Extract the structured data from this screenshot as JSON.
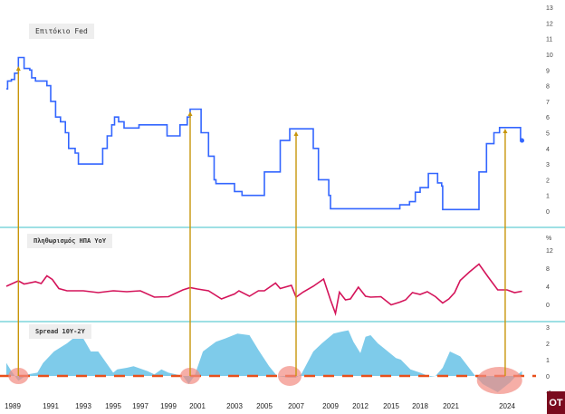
{
  "chart_data": [
    {
      "type": "line",
      "title": "Επιτόκιο Fed",
      "yticks": [
        0,
        1,
        2,
        3,
        4,
        5,
        6,
        7,
        8,
        9,
        10,
        11,
        12,
        13
      ],
      "ylim": [
        0,
        13
      ],
      "color": "#3366ff",
      "x": [
        1988.5,
        1988.6,
        1988.9,
        1989.1,
        1989.3,
        1989.5,
        1989.6,
        1989.9,
        1990.0,
        1990.2,
        1990.8,
        1991.0,
        1991.3,
        1991.6,
        1991.9,
        1992.1,
        1992.5,
        1992.7,
        1994.0,
        1994.3,
        1994.6,
        1994.9,
        1995.1,
        1995.4,
        1995.8,
        1996.9,
        1998.6,
        1998.9,
        1999.4,
        1999.8,
        2000.3,
        2000.5,
        2000.9,
        2001.2,
        2001.6,
        2001.9,
        2002.0,
        2002.9,
        2003.0,
        2003.5,
        2004.4,
        2005.0,
        2006.0,
        2006.6,
        2007.6,
        2008.0,
        2008.3,
        2008.9,
        2009.0,
        2015.9,
        2016.9,
        2017.5,
        2018.0,
        2018.8,
        2019.3,
        2019.7,
        2020.1,
        2020.2,
        2022.2,
        2022.5,
        2022.9,
        2023.3,
        2023.6,
        2024.6,
        2024.9,
        2025.0
      ],
      "y": [
        7.8,
        8.3,
        8.4,
        8.8,
        9.8,
        9.8,
        9.1,
        9.0,
        8.5,
        8.3,
        8.0,
        7.0,
        6.0,
        5.7,
        5.0,
        4.0,
        3.7,
        3.0,
        3.0,
        4.0,
        4.8,
        5.5,
        6.0,
        5.7,
        5.3,
        5.5,
        5.5,
        4.8,
        4.8,
        5.5,
        6.0,
        6.5,
        6.5,
        5.0,
        3.5,
        2.0,
        1.75,
        1.75,
        1.25,
        1.0,
        1.0,
        2.5,
        4.5,
        5.25,
        5.25,
        4.0,
        2.0,
        1.0,
        0.15,
        0.4,
        0.6,
        1.2,
        1.5,
        2.4,
        2.4,
        1.8,
        1.6,
        0.1,
        0.1,
        2.5,
        4.3,
        5.0,
        5.33,
        5.33,
        4.6,
        4.5
      ]
    },
    {
      "type": "line",
      "title": "Πληθωρισμός ΗΠΑ YoY",
      "unit": "%",
      "yticks": [
        0,
        4,
        8,
        12
      ],
      "color": "#d4145a",
      "x": [
        1988.5,
        1989.3,
        1989.6,
        1990.2,
        1990.5,
        1990.8,
        1991.1,
        1991.5,
        1992,
        1993,
        1994,
        1995,
        1996,
        1997,
        1998,
        1999,
        2000,
        2000.5,
        2001,
        2001.6,
        2002.3,
        2003,
        2003.3,
        2004,
        2004.6,
        2005,
        2005.7,
        2006,
        2006.7,
        2007,
        2007.4,
        2008,
        2008.6,
        2009.0,
        2009.5,
        2009.9,
        2010.5,
        2011.0,
        2011.8,
        2012.5,
        2013,
        2014,
        2015,
        2015.9,
        2016.5,
        2017.2,
        2018,
        2018.7,
        2019.5,
        2020.2,
        2020.8,
        2021.2,
        2021.5,
        2022.0,
        2022.5,
        2023,
        2023.5,
        2024,
        2024.5,
        2025.0
      ],
      "y": [
        4.0,
        5.2,
        4.5,
        5.0,
        4.6,
        6.3,
        5.5,
        3.5,
        3.0,
        3.0,
        2.6,
        3.0,
        2.8,
        3.0,
        1.6,
        1.7,
        3.2,
        3.7,
        3.4,
        3.0,
        1.2,
        2.3,
        3.0,
        1.8,
        3.0,
        3.0,
        4.7,
        3.5,
        4.2,
        1.6,
        2.7,
        4.0,
        5.6,
        1.0,
        -2.0,
        2.7,
        1.0,
        1.2,
        3.8,
        1.8,
        1.6,
        1.7,
        -0.1,
        0.5,
        1.0,
        2.6,
        2.2,
        2.8,
        1.7,
        0.3,
        1.2,
        2.6,
        5.3,
        7.2,
        8.9,
        6.0,
        3.2,
        3.2,
        2.6,
        2.9
      ]
    },
    {
      "type": "area",
      "title": "Spread 10Y-2Y",
      "yticks": [
        -1,
        0,
        1,
        2,
        3
      ],
      "color": "#7ecbea",
      "zero_line_color": "#e8501c",
      "x": [
        1988.5,
        1988.9,
        1989.3,
        1989.8,
        1990.3,
        1990.6,
        1991.2,
        1992,
        1992.5,
        1993,
        1993.5,
        1994,
        1995,
        1995.3,
        1996,
        1996.5,
        1997.5,
        1998,
        1998.5,
        1999,
        2000,
        2000.4,
        2000.8,
        2001.3,
        2002,
        2002.5,
        2003.2,
        2004.0,
        2004.6,
        2005.3,
        2005.8,
        2006.5,
        2007,
        2007.3,
        2008,
        2008.5,
        2009.3,
        2010,
        2010.8,
        2011.3,
        2012,
        2012.5,
        2013,
        2013.7,
        2014.5,
        2015.5,
        2016,
        2017,
        2018,
        2019,
        2019.5,
        2020.2,
        2020.9,
        2021.5,
        2022.3,
        2022.7,
        2023.5,
        2024.2,
        2024.6,
        2025
      ],
      "y": [
        0.8,
        0.3,
        -0.3,
        0.1,
        0.2,
        0.8,
        1.5,
        2.0,
        2.4,
        2.3,
        1.5,
        1.5,
        0.2,
        0.4,
        0.5,
        0.6,
        0.3,
        0.1,
        0.4,
        0.2,
        0.0,
        -0.5,
        0.0,
        1.5,
        2.1,
        2.3,
        2.6,
        2.5,
        1.6,
        0.6,
        0.0,
        -0.1,
        -0.1,
        0.1,
        1.5,
        2.0,
        2.6,
        2.7,
        2.8,
        2.1,
        1.4,
        2.4,
        2.5,
        2.0,
        1.6,
        1.1,
        1.0,
        0.4,
        0.2,
        -0.05,
        0.0,
        0.5,
        1.5,
        1.2,
        0.0,
        -0.5,
        -1.0,
        -0.4,
        0.0,
        0.3
      ]
    }
  ],
  "x_tick_labels": [
    "1989",
    "1991",
    "1993",
    "1995",
    "1997",
    "1999",
    "2001",
    "2003",
    "2005",
    "2007",
    "2009",
    "2012",
    "2015",
    "2018",
    "2021",
    "2024"
  ],
  "inversion_highlights": [
    1989.3,
    2000.5,
    2006.6,
    2023.6
  ],
  "annotation_arrows": [
    1989.3,
    2000.5,
    2007.0,
    2023.9
  ],
  "arrow_color": "#c8960a",
  "separator_color": "#7fd6dc",
  "highlight_color": "#f28b82",
  "logo": "OT"
}
